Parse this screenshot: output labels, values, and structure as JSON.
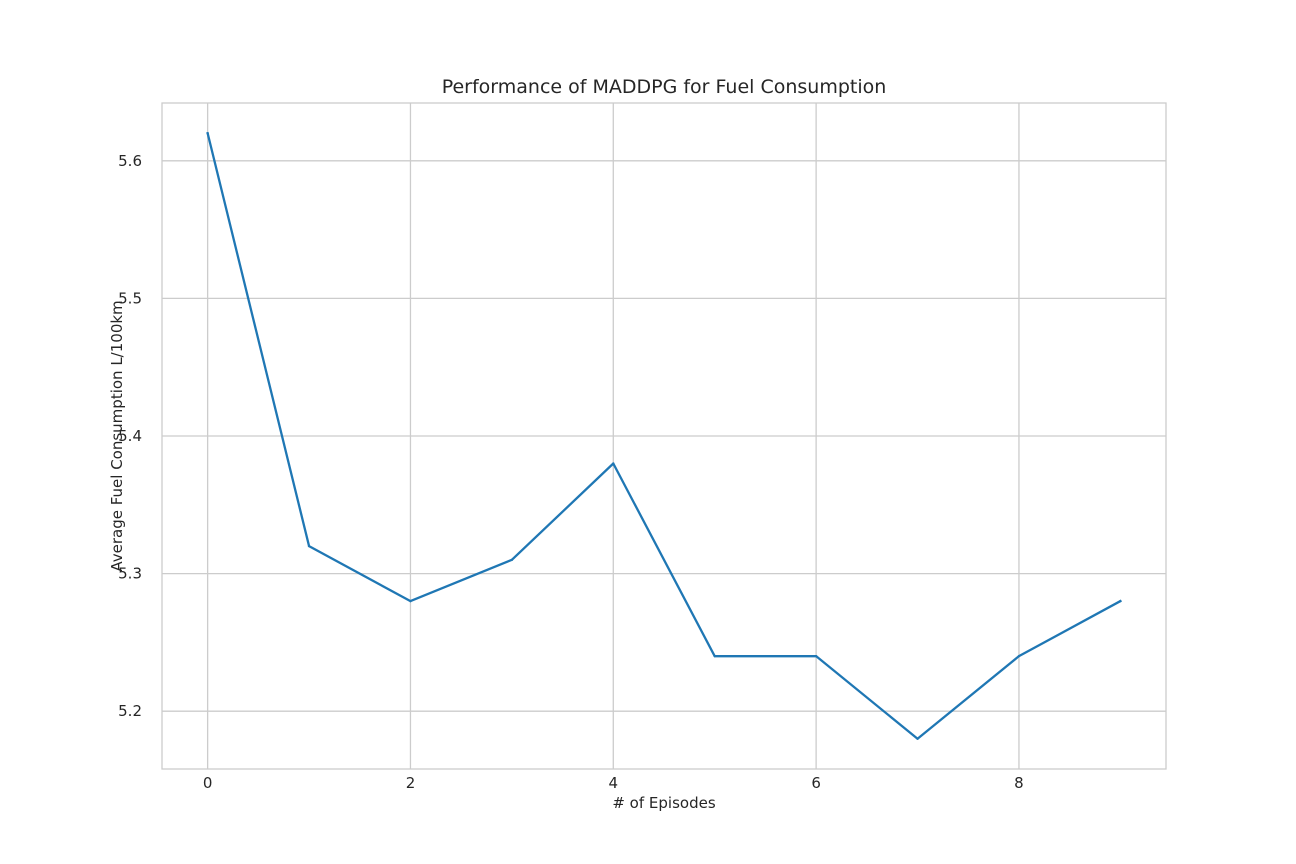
{
  "chart_data": {
    "type": "line",
    "title": "Performance of MADDPG for Fuel Consumption",
    "xlabel": "# of Episodes",
    "ylabel": "Average Fuel Consumption L/100km",
    "x": [
      0,
      1,
      2,
      3,
      4,
      5,
      6,
      7,
      8,
      9
    ],
    "series": [
      {
        "values": [
          5.62,
          5.32,
          5.28,
          5.31,
          5.38,
          5.24,
          5.24,
          5.18,
          5.24,
          5.28
        ],
        "color": "#1f77b4"
      }
    ],
    "xlim": [
      -0.45,
      9.45
    ],
    "ylim": [
      5.158,
      5.642
    ],
    "xticks": [
      0,
      2,
      4,
      6,
      8
    ],
    "xtick_labels": [
      "0",
      "2",
      "4",
      "6",
      "8"
    ],
    "yticks": [
      5.2,
      5.3,
      5.4,
      5.5,
      5.6
    ],
    "ytick_labels": [
      "5.2",
      "5.3",
      "5.4",
      "5.5",
      "5.6"
    ],
    "grid": true,
    "legend": "none"
  }
}
